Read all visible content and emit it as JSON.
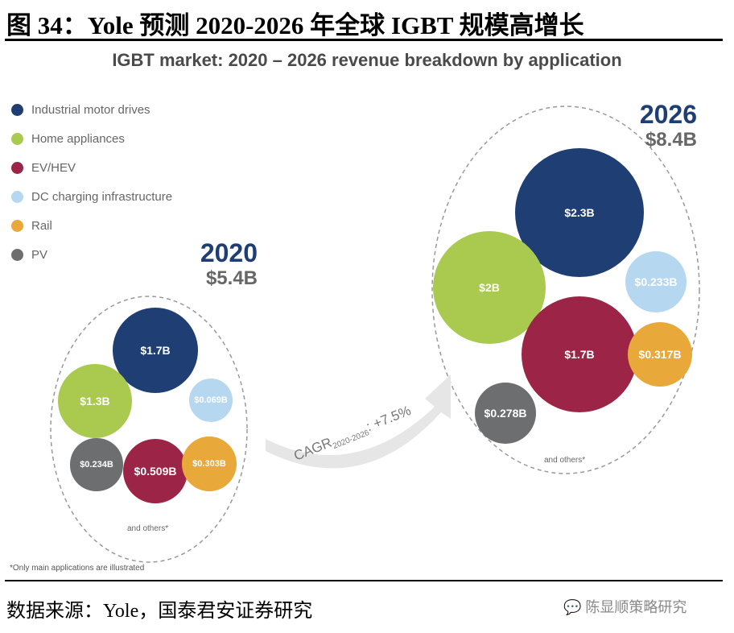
{
  "figure_title": "图 34：Yole 预测 2020-2026 年全球 IGBT 规模高增长",
  "chart_data": {
    "type": "bubble",
    "title": "IGBT market: 2020 – 2026 revenue breakdown by application",
    "legend": [
      {
        "name": "Industrial motor drives",
        "color": "#1f3f74"
      },
      {
        "name": "Home appliances",
        "color": "#a9c94f"
      },
      {
        "name": "EV/HEV",
        "color": "#9b2447"
      },
      {
        "name": "DC charging infrastructure",
        "color": "#b5d8f0"
      },
      {
        "name": "Rail",
        "color": "#e8a83a"
      },
      {
        "name": "PV",
        "color": "#6d6e70"
      }
    ],
    "groups": [
      {
        "year": "2020",
        "total": "$5.4B",
        "others_label": "and others*",
        "values": [
          {
            "series": "Industrial motor drives",
            "label": "$1.7B",
            "value": 1.7
          },
          {
            "series": "Home appliances",
            "label": "$1.3B",
            "value": 1.3
          },
          {
            "series": "DC charging infrastructure",
            "label": "$0.069B",
            "value": 0.069
          },
          {
            "series": "PV",
            "label": "$0.234B",
            "value": 0.234
          },
          {
            "series": "EV/HEV",
            "label": "$0.509B",
            "value": 0.509
          },
          {
            "series": "Rail",
            "label": "$0.303B",
            "value": 0.303
          }
        ]
      },
      {
        "year": "2026",
        "total": "$8.4B",
        "others_label": "and others*",
        "values": [
          {
            "series": "Industrial motor drives",
            "label": "$2.3B",
            "value": 2.3
          },
          {
            "series": "Home appliances",
            "label": "$2B",
            "value": 2.0
          },
          {
            "series": "DC charging infrastructure",
            "label": "$0.233B",
            "value": 0.233
          },
          {
            "series": "EV/HEV",
            "label": "$1.7B",
            "value": 1.7
          },
          {
            "series": "Rail",
            "label": "$0.317B",
            "value": 0.317
          },
          {
            "series": "PV",
            "label": "$0.278B",
            "value": 0.278
          }
        ]
      }
    ],
    "cagr": {
      "prefix": "CAGR",
      "sub": "2020-2026",
      "suffix": ": +7.5%"
    },
    "footnote": "*Only main applications are illustrated"
  },
  "source": "数据来源：Yole，国泰君安证券研究",
  "brand": "陈显顺策略研究"
}
